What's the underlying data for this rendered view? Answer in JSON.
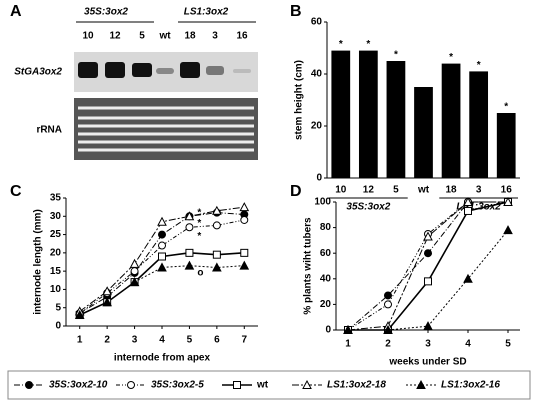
{
  "blot": {
    "panel": "A",
    "groups": [
      "35S:3ox2",
      "LS1:3ox2"
    ],
    "lanes": [
      "10",
      "12",
      "5",
      "wt",
      "18",
      "3",
      "16"
    ],
    "rows": [
      "StGA3ox2",
      "rRNA"
    ]
  },
  "chart_data": [
    {
      "type": "bar",
      "panel": "B",
      "ylabel": "stem height (cm)",
      "categories": [
        "10",
        "12",
        "5",
        "wt",
        "18",
        "3",
        "16"
      ],
      "values": [
        49,
        49,
        45,
        35,
        44,
        41,
        25
      ],
      "markers": [
        "*",
        "*",
        "*",
        null,
        "*",
        "*",
        "*"
      ],
      "groups": [
        "35S:3ox2",
        "LS1:3ox2"
      ],
      "color": "#000000",
      "ylim": [
        0,
        60
      ],
      "yticks": [
        0,
        20,
        40,
        60
      ]
    },
    {
      "type": "line",
      "panel": "C",
      "xlabel": "internode from apex",
      "ylabel": "internode length (mm)",
      "x": [
        1,
        2,
        3,
        4,
        5,
        6,
        7
      ],
      "xlim": [
        0.5,
        7.5
      ],
      "xticks": [
        1,
        2,
        3,
        4,
        5,
        6,
        7
      ],
      "ylim": [
        0,
        35
      ],
      "yticks": [
        0,
        5,
        10,
        15,
        20,
        25,
        30,
        35
      ],
      "series": [
        {
          "name": "35S:3ox2-10",
          "values": [
            3.5,
            8,
            14.5,
            25,
            30,
            31,
            30.5
          ]
        },
        {
          "name": "35S:3ox2-5",
          "values": [
            3.5,
            9,
            15,
            22,
            27,
            27.5,
            29
          ]
        },
        {
          "name": "wt",
          "values": [
            3,
            6.5,
            12,
            19,
            20,
            19.5,
            20
          ]
        },
        {
          "name": "LS1:3ox2-18",
          "values": [
            4,
            9.5,
            17,
            28.5,
            30,
            31.5,
            32.5
          ]
        },
        {
          "name": "LS1:3ox2-16",
          "values": [
            3,
            6.5,
            12,
            16,
            16.5,
            16,
            16.5
          ]
        }
      ],
      "annotations": [
        {
          "x": 5,
          "y": 31,
          "text": "*"
        },
        {
          "x": 5,
          "y": 28,
          "text": "*"
        },
        {
          "x": 5,
          "y": 24.5,
          "text": "*"
        },
        {
          "x": 5,
          "y": 14.5,
          "text": "o"
        }
      ]
    },
    {
      "type": "line",
      "panel": "D",
      "xlabel": "weeks under SD",
      "ylabel": "% plants wiht tubers",
      "x": [
        1,
        2,
        3,
        4,
        5
      ],
      "xlim": [
        0.7,
        5.3
      ],
      "xticks": [
        1,
        2,
        3,
        4,
        5
      ],
      "ylim": [
        0,
        100
      ],
      "yticks": [
        0,
        20,
        40,
        60,
        80,
        100
      ],
      "series": [
        {
          "values": [
            0,
            27,
            60,
            100,
            100
          ]
        },
        {
          "values": [
            0,
            20,
            75,
            100,
            100
          ]
        },
        {
          "values": [
            0,
            0,
            38,
            93,
            100
          ]
        },
        {
          "values": [
            0,
            3,
            73,
            100,
            100
          ]
        },
        {
          "values": [
            0,
            0,
            3,
            40,
            78
          ]
        }
      ]
    }
  ]
}
